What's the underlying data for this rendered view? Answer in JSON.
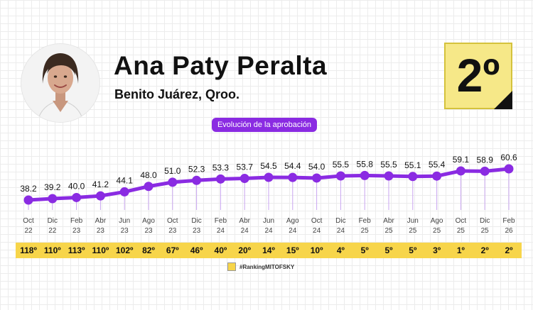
{
  "header": {
    "name": "Ana Paty Peralta",
    "location": "Benito Juárez, Qroo.",
    "rank": "2º",
    "subtitle": "Evolución de la aprobación"
  },
  "legend": {
    "label": "#RankingMITOFSKY"
  },
  "colors": {
    "line": "#8a2be2",
    "ranking_strip": "#f7d54a",
    "badge": "#f6e888",
    "pill": "#8a2be2"
  },
  "chart_data": {
    "type": "line",
    "categories": [
      {
        "month": "Oct",
        "year": "22"
      },
      {
        "month": "Dic",
        "year": "22"
      },
      {
        "month": "Feb",
        "year": "23"
      },
      {
        "month": "Abr",
        "year": "23"
      },
      {
        "month": "Jun",
        "year": "23"
      },
      {
        "month": "Ago",
        "year": "23"
      },
      {
        "month": "Oct",
        "year": "23"
      },
      {
        "month": "Dic",
        "year": "23"
      },
      {
        "month": "Feb",
        "year": "24"
      },
      {
        "month": "Abr",
        "year": "24"
      },
      {
        "month": "Jun",
        "year": "24"
      },
      {
        "month": "Ago",
        "year": "24"
      },
      {
        "month": "Oct",
        "year": "24"
      },
      {
        "month": "Dic",
        "year": "24"
      },
      {
        "month": "Feb",
        "year": "25"
      },
      {
        "month": "Abr",
        "year": "25"
      },
      {
        "month": "Jun",
        "year": "25"
      },
      {
        "month": "Ago",
        "year": "25"
      },
      {
        "month": "Oct",
        "year": "25"
      },
      {
        "month": "Dic",
        "year": "25"
      },
      {
        "month": "Feb",
        "year": "26"
      }
    ],
    "values": [
      38.2,
      39.2,
      40.0,
      41.2,
      44.1,
      48.0,
      51.0,
      52.3,
      53.3,
      53.7,
      54.5,
      54.4,
      54.0,
      55.5,
      55.8,
      55.5,
      55.1,
      55.4,
      59.1,
      58.9,
      60.6
    ],
    "value_labels": [
      "38.2",
      "39.2",
      "40.0",
      "41.2",
      "44.1",
      "48.0",
      "51.0",
      "52.3",
      "53.3",
      "53.7",
      "54.5",
      "54.4",
      "54.0",
      "55.5",
      "55.8",
      "55.5",
      "55.1",
      "55.4",
      "59.1",
      "58.9",
      "60.6"
    ],
    "rankings": [
      "118º",
      "110º",
      "113º",
      "110º",
      "102º",
      "82º",
      "67º",
      "46º",
      "40º",
      "20º",
      "14º",
      "15º",
      "10º",
      "4º",
      "5º",
      "5º",
      "5º",
      "3º",
      "1º",
      "2º",
      "2º"
    ],
    "ylim": [
      30,
      65
    ],
    "grid": false,
    "legend_position": "bottom-center"
  }
}
